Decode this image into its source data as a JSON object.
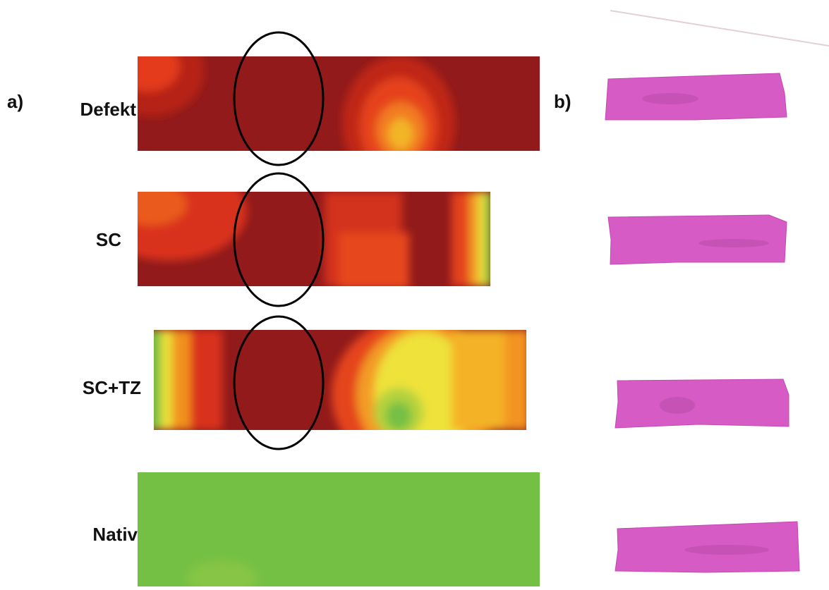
{
  "panel_a_label": "a)",
  "panel_b_label": "b)",
  "rows": [
    "Defekt",
    "SC",
    "SC+TZ",
    "Nativ"
  ]
}
